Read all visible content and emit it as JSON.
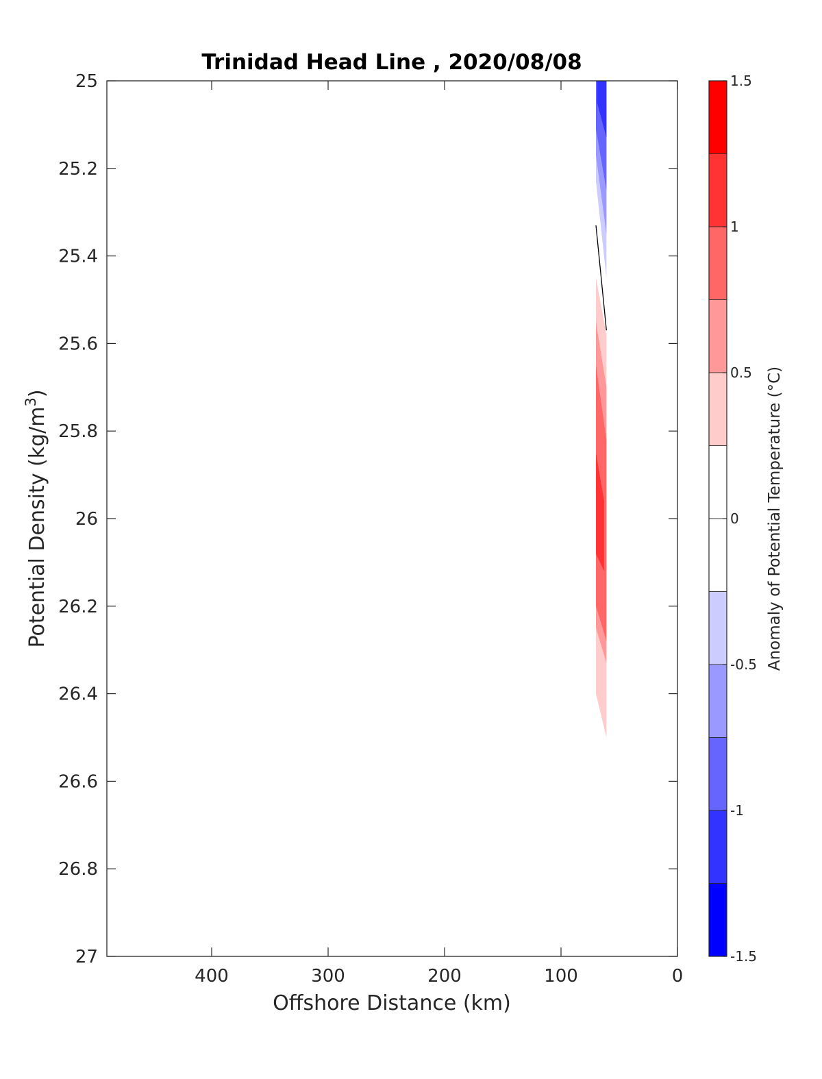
{
  "chart_data": {
    "type": "contour",
    "title": "Trinidad Head Line , 2020/08/08",
    "xlabel": "Offshore Distance (km)",
    "ylabel": "Potential Density (kg/m³)",
    "ylabel_parts": [
      "Potential Density (kg/m",
      "3",
      ")"
    ],
    "xlim": [
      490,
      0
    ],
    "ylim": [
      25,
      27
    ],
    "x_reversed": true,
    "y_reversed": true,
    "x_ticks": [
      400,
      300,
      200,
      100,
      0
    ],
    "x_tick_labels": [
      "400",
      "300",
      "200",
      "100",
      "0"
    ],
    "y_ticks": [
      25,
      25.2,
      25.4,
      25.6,
      25.8,
      26,
      26.2,
      26.4,
      26.6,
      26.8,
      27
    ],
    "y_tick_labels": [
      "25",
      "25.2",
      "25.4",
      "25.6",
      "25.8",
      "26",
      "26.2",
      "26.4",
      "26.6",
      "26.8",
      "27"
    ],
    "grid": false,
    "colorbar": {
      "label": "Anomaly of Potential Temperature (°C)",
      "clim": [
        -1.5,
        1.5
      ],
      "ticks": [
        1.5,
        1,
        0.5,
        0,
        -0.5,
        -1,
        -1.5
      ],
      "tick_labels": [
        "1.5",
        "1",
        "0.5",
        "0",
        "-0.5",
        "-1",
        "-1.5"
      ],
      "levels": [
        {
          "from": 1.25,
          "to": 1.5,
          "color": "#ff0000"
        },
        {
          "from": 1.0,
          "to": 1.25,
          "color": "#ff3333"
        },
        {
          "from": 0.75,
          "to": 1.0,
          "color": "#ff6666"
        },
        {
          "from": 0.5,
          "to": 0.75,
          "color": "#ff9999"
        },
        {
          "from": 0.25,
          "to": 0.5,
          "color": "#ffcccc"
        },
        {
          "from": 0.0,
          "to": 0.25,
          "color": "#ffffff"
        },
        {
          "from": -0.25,
          "to": 0.0,
          "color": "#ffffff"
        },
        {
          "from": -0.5,
          "to": -0.25,
          "color": "#ccccff"
        },
        {
          "from": -0.75,
          "to": -0.5,
          "color": "#9999ff"
        },
        {
          "from": -1.0,
          "to": -0.75,
          "color": "#6666ff"
        },
        {
          "from": -1.25,
          "to": -1.0,
          "color": "#3333ff"
        },
        {
          "from": -1.5,
          "to": -1.25,
          "color": "#0000ff"
        }
      ]
    },
    "regions": [
      {
        "name": "cold-anomaly-weak",
        "level": -0.375,
        "color": "#ccccff",
        "points": [
          [
            70,
            25.0
          ],
          [
            61,
            25.0
          ],
          [
            61,
            25.45
          ],
          [
            70,
            25.23
          ]
        ]
      },
      {
        "name": "cold-anomaly-mid",
        "level": -0.625,
        "color": "#9999ff",
        "points": [
          [
            70,
            25.0
          ],
          [
            61,
            25.0
          ],
          [
            61,
            25.35
          ],
          [
            70,
            25.17
          ]
        ]
      },
      {
        "name": "cold-anomaly-strong",
        "level": -0.875,
        "color": "#6666ff",
        "points": [
          [
            70,
            25.0
          ],
          [
            61,
            25.0
          ],
          [
            61,
            25.25
          ],
          [
            70,
            25.11
          ]
        ]
      },
      {
        "name": "cold-anomaly-core",
        "level": -1.125,
        "color": "#3333ff",
        "points": [
          [
            69,
            25.0
          ],
          [
            61,
            25.0
          ],
          [
            61,
            25.13
          ],
          [
            69,
            25.05
          ]
        ]
      },
      {
        "name": "warm-anomaly-weak",
        "level": 0.375,
        "color": "#ffcccc",
        "points": [
          [
            70,
            25.45
          ],
          [
            61,
            25.58
          ],
          [
            61,
            26.5
          ],
          [
            70,
            26.4
          ]
        ]
      },
      {
        "name": "warm-anomaly-mid",
        "level": 0.625,
        "color": "#ff9999",
        "points": [
          [
            70,
            25.55
          ],
          [
            61,
            25.7
          ],
          [
            61,
            26.33
          ],
          [
            70,
            26.25
          ]
        ]
      },
      {
        "name": "warm-anomaly-strong",
        "level": 0.875,
        "color": "#ff6666",
        "points": [
          [
            70,
            25.65
          ],
          [
            61,
            25.82
          ],
          [
            61,
            26.28
          ],
          [
            70,
            26.2
          ]
        ]
      },
      {
        "name": "warm-anomaly-core",
        "level": 1.125,
        "color": "#ff3333",
        "points": [
          [
            70,
            25.85
          ],
          [
            63,
            25.96
          ],
          [
            63,
            26.12
          ],
          [
            70,
            26.08
          ]
        ]
      }
    ],
    "contour_lines": [
      {
        "level": 0,
        "color": "#000000",
        "points": [
          [
            70,
            25.33
          ],
          [
            61,
            25.57
          ]
        ]
      }
    ]
  }
}
